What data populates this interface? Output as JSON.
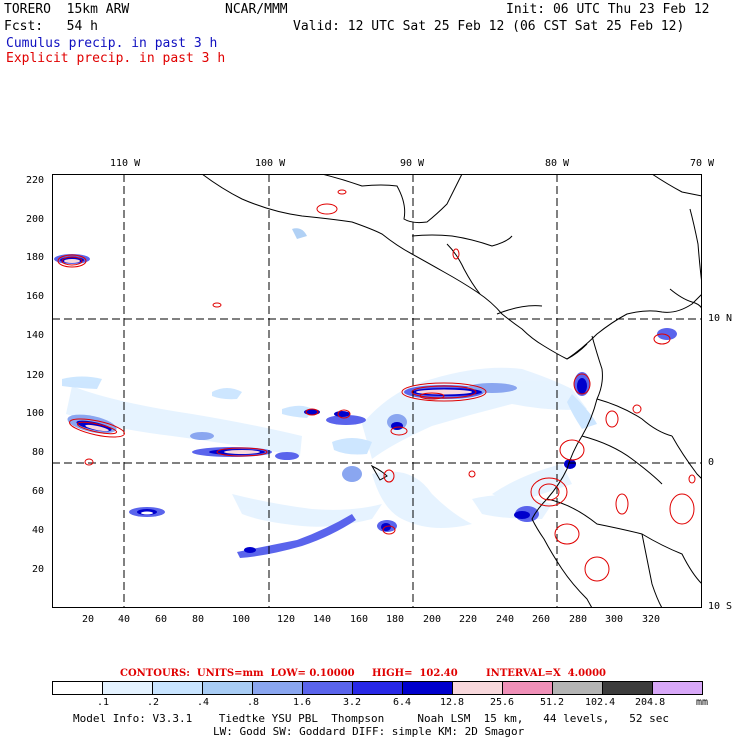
{
  "header": {
    "model": "TORERO  15km ARW",
    "org": "NCAR/MMM",
    "init": "Init: 06 UTC Thu 23 Feb 12",
    "fcst": "Fcst:   54 h",
    "valid": "Valid: 12 UTC Sat 25 Feb 12 (06 CST Sat 25 Feb 12)",
    "legend_cumulus": "Cumulus precip. in past 3 h",
    "legend_explicit": "Explicit precip. in past 3 h"
  },
  "colors": {
    "cumulus": "#1010c0",
    "explicit": "#e00000",
    "coast": "#000000",
    "grid": "#000000"
  },
  "map": {
    "lon_labels": [
      "110 W",
      "100 W",
      "90 W",
      "80 W",
      "70 W"
    ],
    "lat_labels": [
      "10 N",
      "0",
      "10 S"
    ],
    "x_ticks": [
      "20",
      "40",
      "60",
      "80",
      "100",
      "120",
      "140",
      "160",
      "180",
      "200",
      "220",
      "240",
      "260",
      "280",
      "300",
      "320"
    ],
    "y_ticks": [
      "220",
      "200",
      "180",
      "160",
      "140",
      "120",
      "100",
      "80",
      "60",
      "40",
      "20"
    ]
  },
  "colorbar": {
    "labels": [
      ".1",
      ".2",
      ".4",
      ".8",
      "1.6",
      "3.2",
      "6.4",
      "12.8",
      "25.6",
      "51.2",
      "102.4",
      "204.8"
    ],
    "unit": "mm",
    "colors": [
      "#ffffff",
      "#e4f2ff",
      "#c8e4ff",
      "#a8ccf4",
      "#8aa6f0",
      "#5a64ec",
      "#2828e6",
      "#0000cc",
      "#f8d8dc",
      "#f090b8",
      "#b4b4b4",
      "#3c3c3c",
      "#d8a8f8"
    ]
  },
  "contour_caption": {
    "units": "CONTOURS:  UNITS=mm  LOW= 0.10000",
    "high": "HIGH=  102.40",
    "interval": "INTERVAL=X  4.0000"
  },
  "model_info": {
    "line1": "Model Info: V3.3.1    Tiedtke YSU PBL  Thompson     Noah LSM  15 km,   44 levels,   52 sec",
    "line2": "LW: Godd SW: Goddard DIFF: simple KM: 2D Smagor"
  }
}
